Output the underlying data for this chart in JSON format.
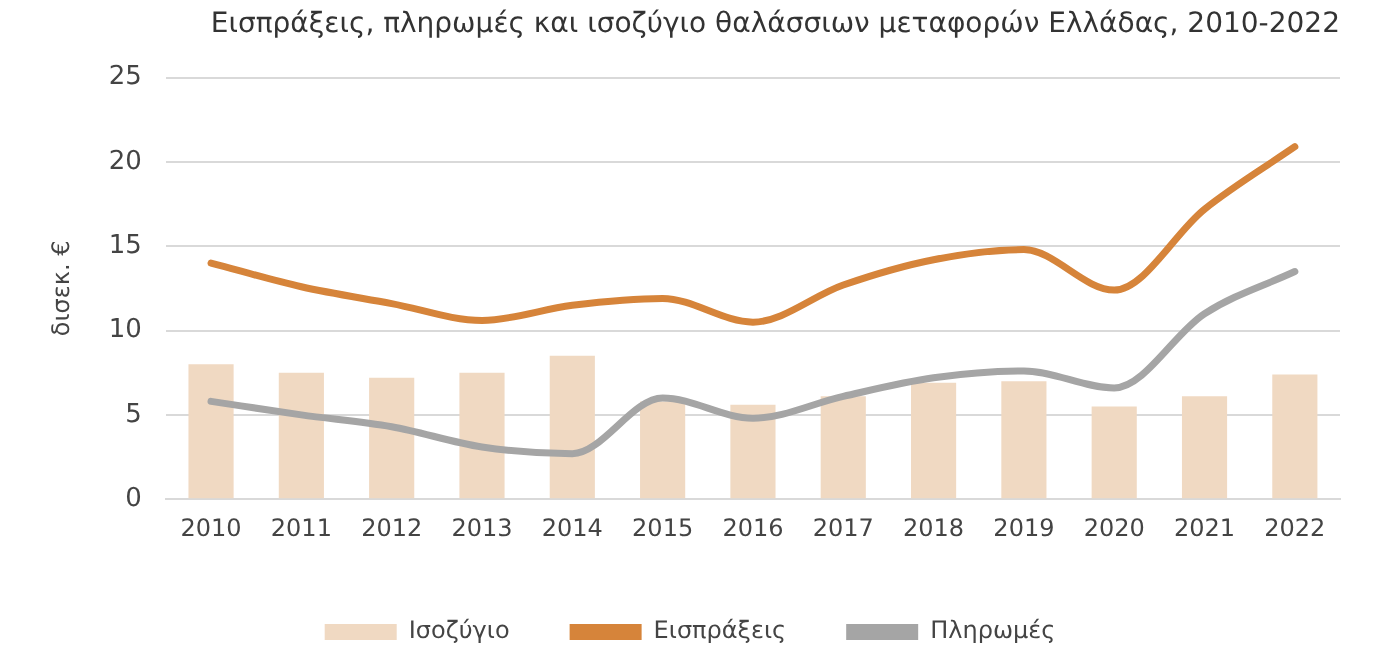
{
  "chart_data": {
    "type": "bar",
    "title": "Εισπράξεις, πληρωμές και ισοζύγιο θαλάσσιων μεταφορών Ελλάδας, 2010-2022",
    "ylabel": "δισεκ. €",
    "categories": [
      "2010",
      "2011",
      "2012",
      "2013",
      "2014",
      "2015",
      "2016",
      "2017",
      "2018",
      "2019",
      "2020",
      "2021",
      "2022"
    ],
    "series": [
      {
        "name": "Ισοζύγιο",
        "color": "#f0d9c2",
        "values": [
          8.0,
          7.5,
          7.2,
          7.5,
          8.5,
          5.8,
          5.6,
          6.1,
          6.9,
          7.0,
          5.5,
          6.1,
          7.4
        ]
      },
      {
        "name": "Εισπράξεις",
        "type": "line",
        "color": "#d6843a",
        "values": [
          14.0,
          12.6,
          11.6,
          10.6,
          11.5,
          11.9,
          10.5,
          12.7,
          14.2,
          14.8,
          12.4,
          17.2,
          20.9
        ]
      },
      {
        "name": "Πληρωμές",
        "type": "line",
        "color": "#a5a5a5",
        "values": [
          5.8,
          5.0,
          4.3,
          3.1,
          2.7,
          6.0,
          4.8,
          6.1,
          7.2,
          7.6,
          6.6,
          11.0,
          13.5
        ]
      }
    ],
    "ylim": [
      0,
      25
    ],
    "yticks": [
      0,
      5,
      10,
      15,
      20,
      25
    ],
    "grid": "y",
    "legend": "bottom",
    "marker": "none"
  }
}
